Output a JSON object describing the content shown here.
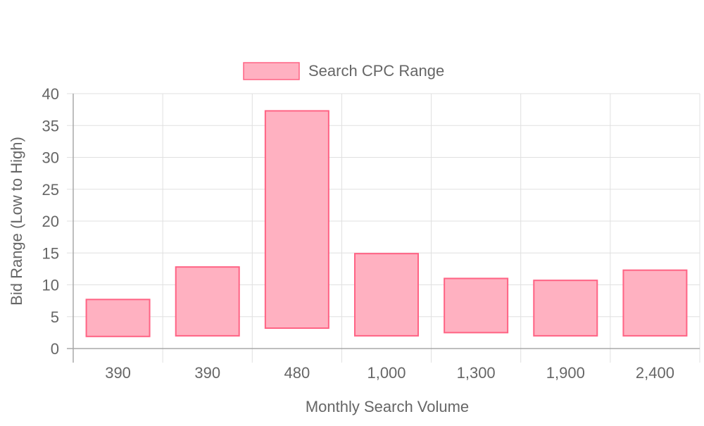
{
  "chart_data": {
    "type": "bar",
    "chart_style": "floating-range-bar",
    "categories": [
      "390",
      "390",
      "480",
      "1,000",
      "1,300",
      "1,900",
      "2,400"
    ],
    "series": [
      {
        "name": "Search CPC Range",
        "ranges": [
          [
            1.9,
            7.7
          ],
          [
            2.0,
            12.8
          ],
          [
            3.2,
            37.3
          ],
          [
            2.0,
            14.9
          ],
          [
            2.5,
            11.0
          ],
          [
            2.0,
            10.7
          ],
          [
            2.0,
            12.3
          ]
        ],
        "fill_color": "#ffb1c1",
        "border_color": "#ff6384"
      }
    ],
    "xlabel": "Monthly Search Volume",
    "ylabel": "Bid Range (Low to High)",
    "ylim": [
      0,
      40
    ],
    "y_ticks": [
      "0",
      "5",
      "10",
      "15",
      "20",
      "25",
      "30",
      "35",
      "40"
    ],
    "grid": true,
    "legend_position": "top"
  }
}
